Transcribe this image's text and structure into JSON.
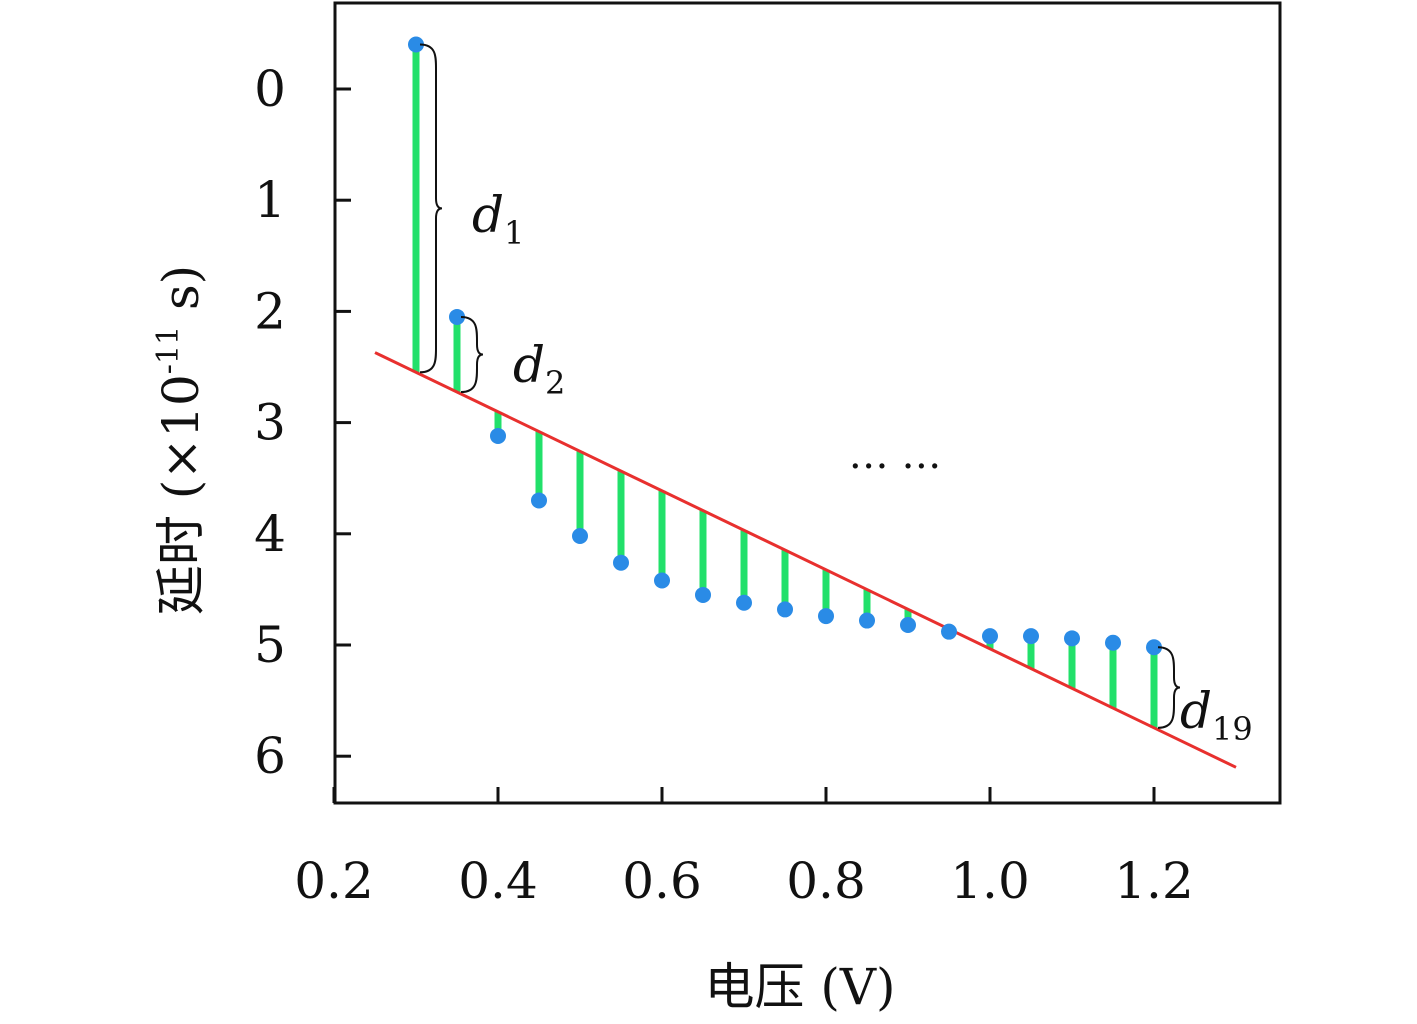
{
  "chart_data": {
    "type": "scatter",
    "xlabel": "电压 (V)",
    "ylabel_main": "延时 (×10",
    "ylabel_exp": "-11",
    "ylabel_tail": " s)",
    "xlim": [
      0.2,
      1.35
    ],
    "ylim": [
      -0.8,
      6.4
    ],
    "y_inverted": true,
    "x_ticks": [
      "0.2",
      "0.4",
      "0.6",
      "0.8",
      "1.0",
      "1.2"
    ],
    "y_ticks": [
      "0",
      "1",
      "2",
      "3",
      "4",
      "5",
      "6"
    ],
    "points": {
      "x": [
        0.3,
        0.35,
        0.4,
        0.45,
        0.5,
        0.55,
        0.6,
        0.65,
        0.7,
        0.75,
        0.8,
        0.85,
        0.9,
        0.95,
        1.0,
        1.05,
        1.1,
        1.15,
        1.2
      ],
      "y": [
        -0.4,
        2.05,
        3.12,
        3.7,
        4.02,
        4.26,
        4.42,
        4.55,
        4.62,
        4.68,
        4.74,
        4.78,
        4.82,
        4.88,
        4.92,
        4.92,
        4.94,
        4.98,
        5.02
      ]
    },
    "fit_line": {
      "x": [
        0.25,
        1.3
      ],
      "y": [
        2.37,
        6.1
      ]
    },
    "annotations": [
      {
        "main": "d",
        "sub": "1"
      },
      {
        "main": "d",
        "sub": "2"
      },
      {
        "main": "d",
        "sub": "19"
      }
    ],
    "ellipsis": "… …",
    "colors": {
      "points": "#2a8be6",
      "residuals": "#22e06a",
      "fit": "#e8302e"
    }
  }
}
